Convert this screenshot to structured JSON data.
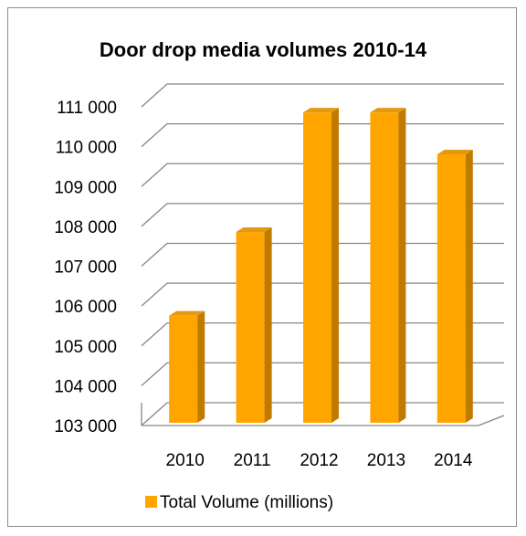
{
  "chart_data": {
    "type": "bar",
    "title": "Door drop media volumes 2010-14",
    "xlabel": "",
    "ylabel": "",
    "categories": [
      "2010",
      "2011",
      "2012",
      "2013",
      "2014"
    ],
    "series": [
      {
        "name": "Total Volume (millions)",
        "values": [
          105850,
          107950,
          110950,
          110950,
          109900
        ]
      }
    ],
    "ylim": [
      103000,
      111000
    ],
    "y_ticks": [
      "103 000",
      "104 000",
      "105 000",
      "106 000",
      "107 000",
      "108 000",
      "109 000",
      "110 000",
      "111 000"
    ],
    "grid": true,
    "legend_position": "bottom",
    "colors": {
      "bar_front": "#FFA500",
      "bar_side": "#C07A00",
      "bar_top": "#E29A12",
      "grid": "#868686"
    }
  }
}
